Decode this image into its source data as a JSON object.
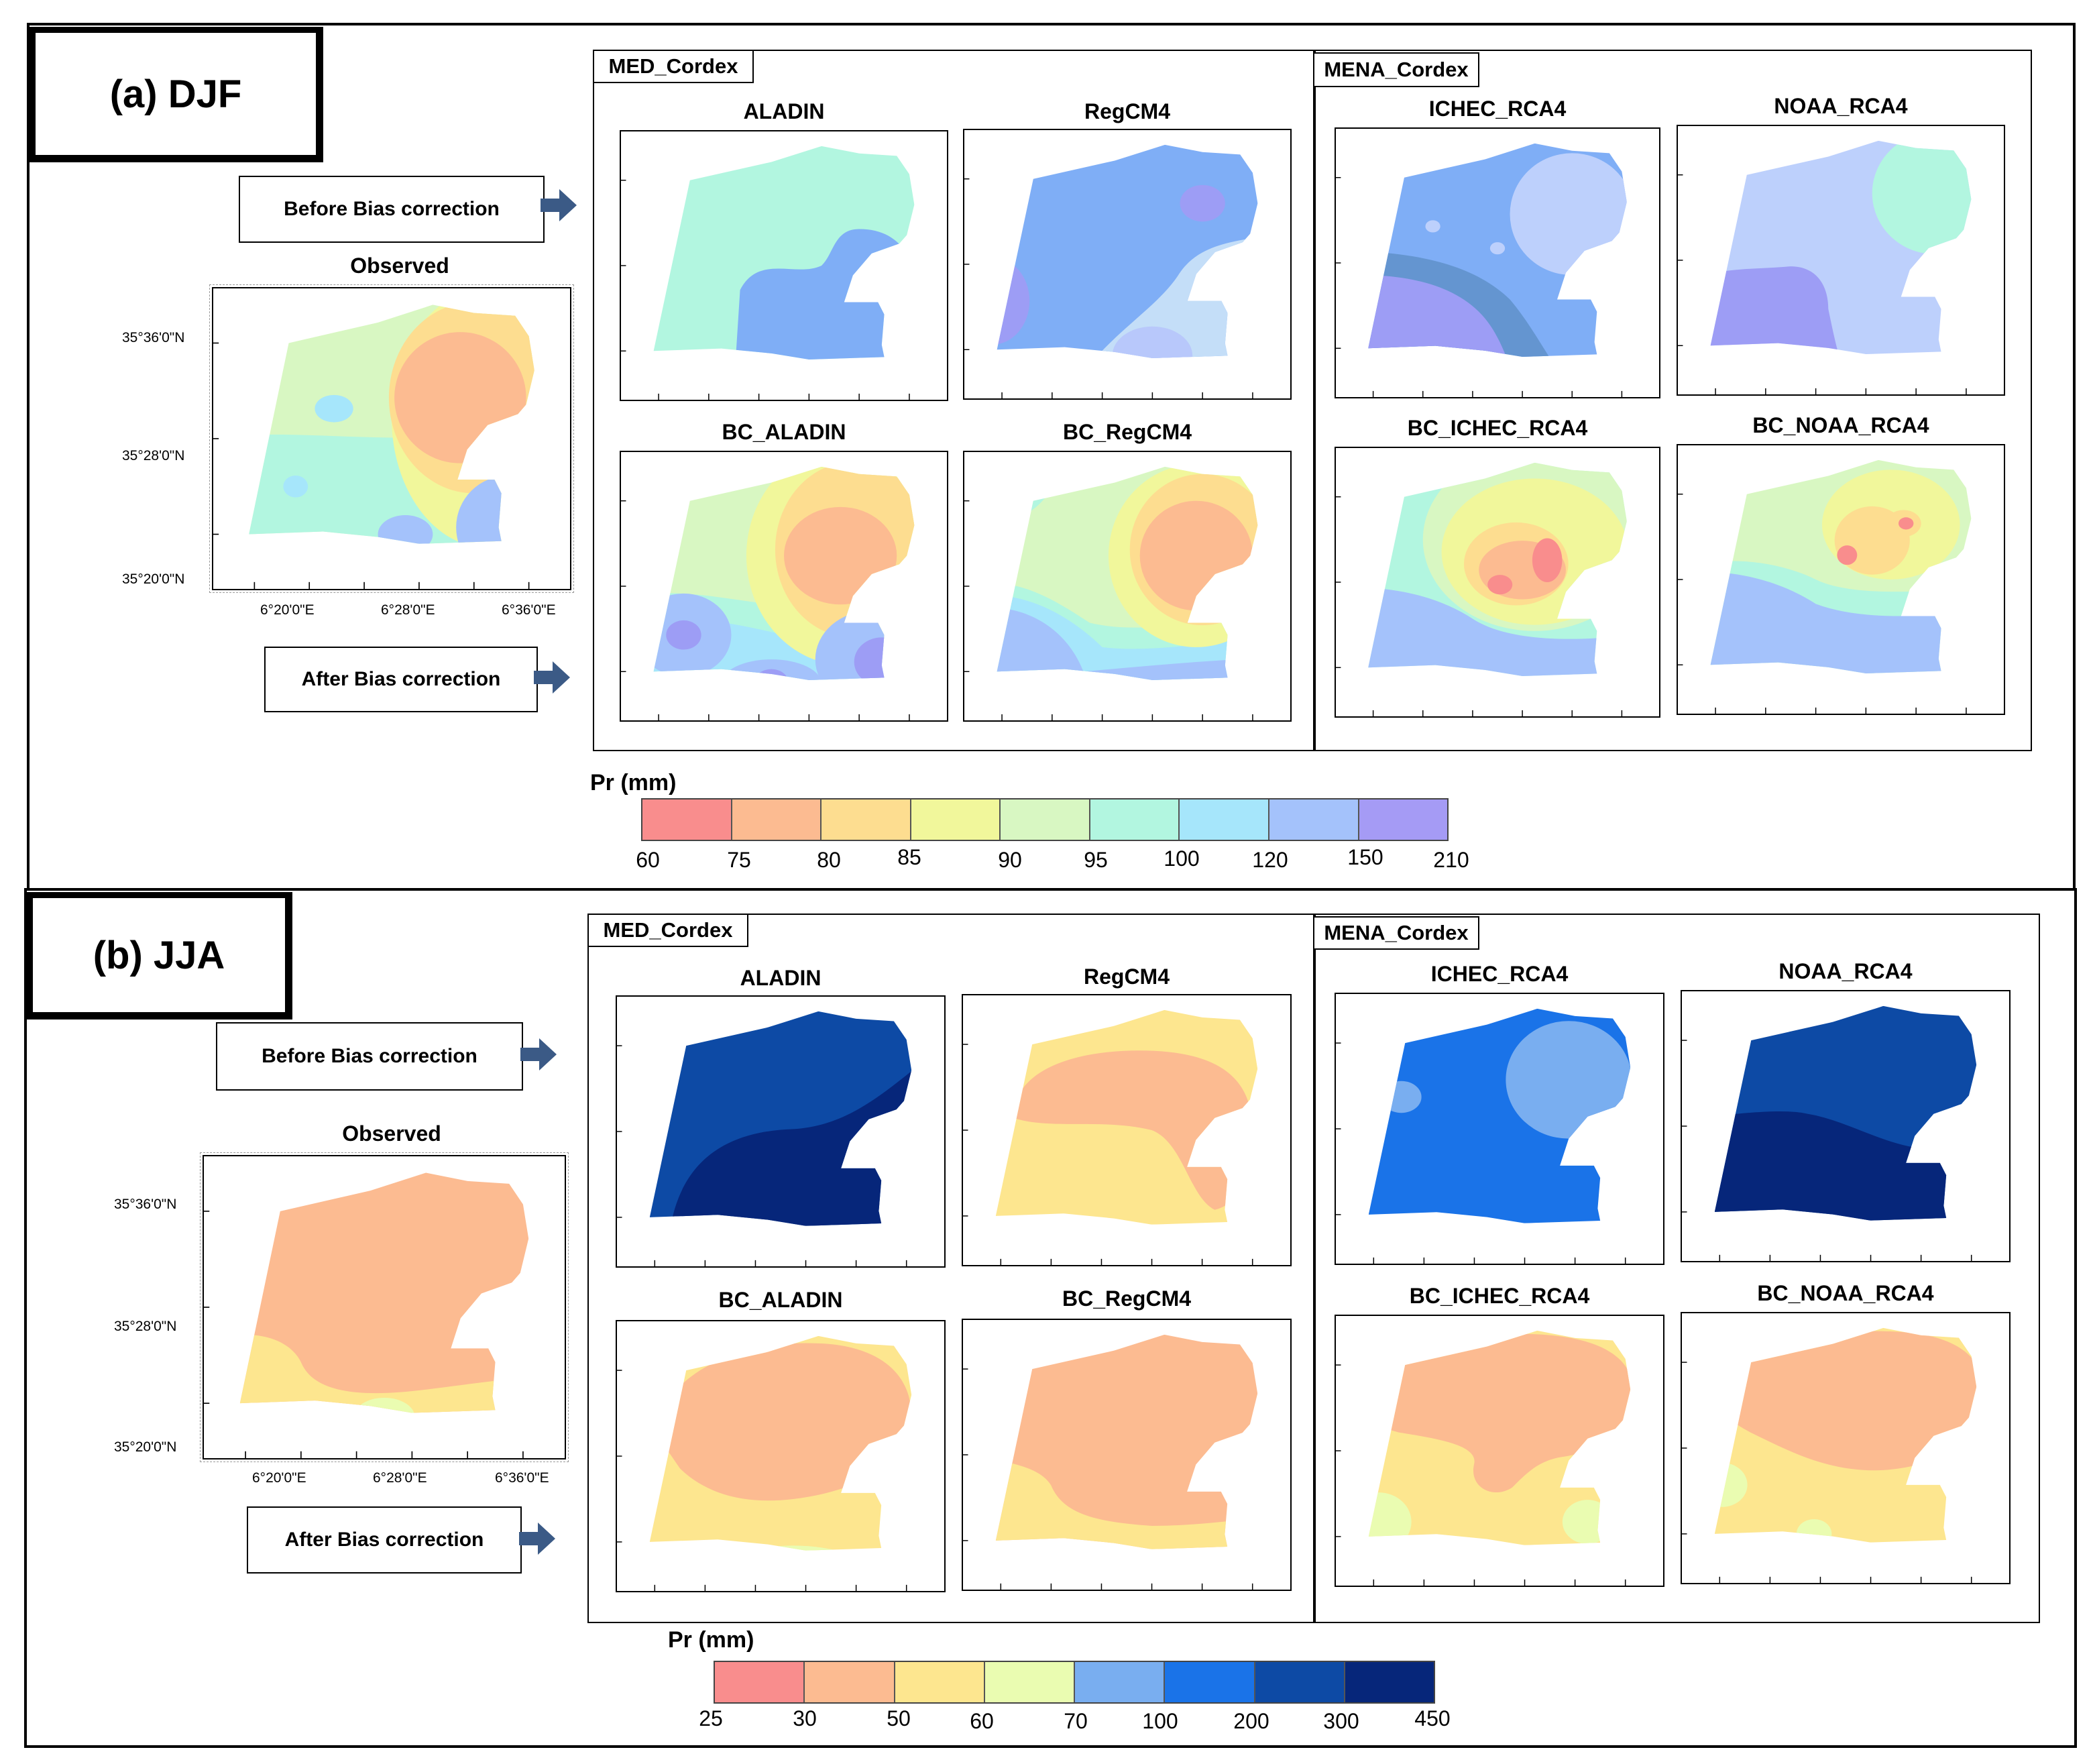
{
  "colors": {
    "djf": [
      "#f98d8d",
      "#fcbb91",
      "#fddd90",
      "#f1f79b",
      "#d8f7c2",
      "#b2f6e0",
      "#a6e6fb",
      "#a4c2fb",
      "#a59bf5"
    ],
    "jja": [
      "#f98d8d",
      "#fcbb91",
      "#fde68f",
      "#eafcb1",
      "#79aef0",
      "#1a73e8",
      "#0d4aa5",
      "#06267a"
    ]
  },
  "djf": {
    "label": "(a) DJF",
    "before_label": "Before Bias correction",
    "after_label": "After Bias correction",
    "observed": {
      "title": "Observed",
      "lat_ticks": [
        "35°36'0\"N",
        "35°28'0\"N",
        "35°20'0\"N"
      ],
      "lon_ticks": [
        "6°20'0\"E",
        "6°28'0\"E",
        "6°36'0\"E"
      ]
    },
    "med_group": "MED_Cordex",
    "mena_group": "MENA_Cordex",
    "panels": {
      "aladin": "ALADIN",
      "regcm4": "RegCM4",
      "bc_aladin": "BC_ALADIN",
      "bc_regcm4": "BC_RegCM4",
      "ichec": "ICHEC_RCA4",
      "noaa": "NOAA_RCA4",
      "bc_ichec": "BC_ICHEC_RCA4",
      "bc_noaa": "BC_NOAA_RCA4"
    },
    "legend": {
      "title": "Pr (mm)",
      "breaks": [
        "60",
        "75",
        "80",
        "85",
        "90",
        "95",
        "100",
        "120",
        "150",
        "210"
      ]
    }
  },
  "jja": {
    "label": "(b) JJA",
    "before_label": "Before Bias correction",
    "after_label": "After Bias correction",
    "observed": {
      "title": "Observed",
      "lat_ticks": [
        "35°36'0\"N",
        "35°28'0\"N",
        "35°20'0\"N"
      ],
      "lon_ticks": [
        "6°20'0\"E",
        "6°28'0\"E",
        "6°36'0\"E"
      ]
    },
    "med_group": "MED_Cordex",
    "mena_group": "MENA_Cordex",
    "panels": {
      "aladin": "ALADIN",
      "regcm4": "RegCM4",
      "bc_aladin": "BC_ALADIN",
      "bc_regcm4": "BC_RegCM4",
      "ichec": "ICHEC_RCA4",
      "noaa": "NOAA_RCA4",
      "bc_ichec": "BC_ICHEC_RCA4",
      "bc_noaa": "BC_NOAA_RCA4"
    },
    "legend": {
      "title": "Pr (mm)",
      "breaks": [
        "25",
        "30",
        "50",
        "60",
        "70",
        "100",
        "200",
        "300",
        "450"
      ]
    }
  }
}
